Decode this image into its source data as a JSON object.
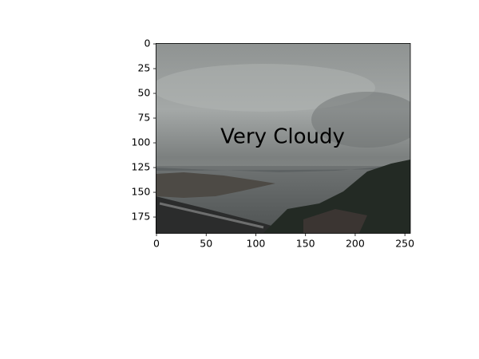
{
  "chart_data": {
    "type": "image",
    "annotation": "Very Cloudy",
    "annotation_color": "red",
    "xlim": [
      -0.5,
      255.5
    ],
    "ylim": [
      191.5,
      -0.5
    ],
    "xticks": [
      0,
      50,
      100,
      150,
      200,
      250
    ],
    "yticks": [
      0,
      25,
      50,
      75,
      100,
      125,
      150,
      175
    ]
  }
}
